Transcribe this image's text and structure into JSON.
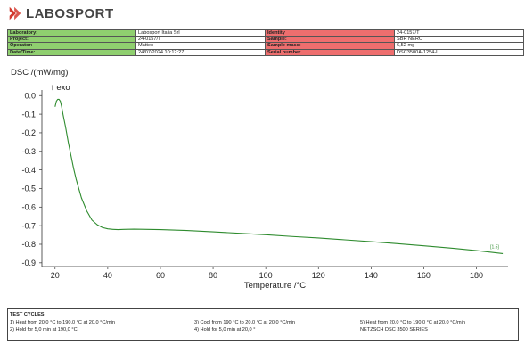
{
  "logo": {
    "text": "LABOSPORT"
  },
  "info_table": {
    "rows": [
      {
        "left_label": "Laboratory:",
        "left_value": "Labosport Italia Srl",
        "right_label": "Identity",
        "right_value": "24-0157/T"
      },
      {
        "left_label": "Project:",
        "left_value": "24-0157/T",
        "right_label": "Sample:",
        "right_value": "SBR NERO"
      },
      {
        "left_label": "Operator:",
        "left_value": "Matteo",
        "right_label": "Sample mass:",
        "right_value": "6,52 mg"
      },
      {
        "left_label": "Date/Time:",
        "left_value": "24/07/2024 10:12:27",
        "right_label": "Serial number",
        "right_value": "DSC3500A-1254-L"
      }
    ],
    "colors": {
      "left_label_bg": "#8fcf6f",
      "right_label_bg": "#ee6e6e"
    }
  },
  "chart_data": {
    "type": "line",
    "ylabel": "DSC /(mW/mg)",
    "xlabel": "Temperature /°C",
    "exo_annotation": "↑ exo",
    "segment_label": "[1.5]",
    "xlim": [
      15,
      192
    ],
    "ylim": [
      -0.92,
      0.03
    ],
    "x_ticks": [
      20,
      40,
      60,
      80,
      100,
      120,
      140,
      160,
      180
    ],
    "x_tick_labels": [
      "20",
      "40",
      "60",
      "80",
      "100",
      "120",
      "140",
      "160",
      "180"
    ],
    "y_ticks": [
      0.0,
      -0.1,
      -0.2,
      -0.3,
      -0.4,
      -0.5,
      -0.6,
      -0.7,
      -0.8,
      -0.9
    ],
    "y_tick_labels": [
      "0.0",
      "-0.1",
      "-0.2",
      "-0.3",
      "-0.4",
      "-0.5",
      "-0.6",
      "-0.7",
      "-0.8",
      "-0.9"
    ],
    "grid": false,
    "line_color": "#2e8b2e",
    "series": [
      {
        "x": [
          20.0,
          20.5,
          21.0,
          21.5,
          22.0,
          22.5,
          23.0,
          24.0,
          25.0,
          26.0,
          27.0,
          28.0,
          30.0,
          32.0,
          34.0,
          36.0,
          38.0,
          40.0,
          42.0,
          44.0,
          46.0,
          50.0,
          55.0,
          60.0,
          70.0,
          80.0,
          90.0,
          100.0,
          110.0,
          120.0,
          130.0,
          140.0,
          150.0,
          160.0,
          170.0,
          180.0,
          190.0
        ],
        "y": [
          -0.06,
          -0.03,
          -0.02,
          -0.02,
          -0.03,
          -0.06,
          -0.1,
          -0.17,
          -0.25,
          -0.32,
          -0.39,
          -0.45,
          -0.55,
          -0.62,
          -0.67,
          -0.695,
          -0.71,
          -0.717,
          -0.72,
          -0.721,
          -0.72,
          -0.719,
          -0.72,
          -0.721,
          -0.726,
          -0.733,
          -0.741,
          -0.749,
          -0.758,
          -0.766,
          -0.776,
          -0.786,
          -0.797,
          -0.808,
          -0.82,
          -0.834,
          -0.85
        ]
      }
    ]
  },
  "footer": {
    "title": "TEST CYCLES:",
    "items": [
      "1)  Heat from 20,0 °C to 190,0 °C at 20,0 °C/min",
      "2)  Hold for 5,0 min at 190,0 °C",
      "3)  Cool from 190 °C to 20,0 °C at 20,0 °C/min",
      "4)  Hold for 5,0 min at 20,0 °",
      "5)  Heat from 20,0 °C to 190,0 °C at 20,0 °C/min",
      "NETZSCH DSC 3500 SERIES"
    ]
  }
}
